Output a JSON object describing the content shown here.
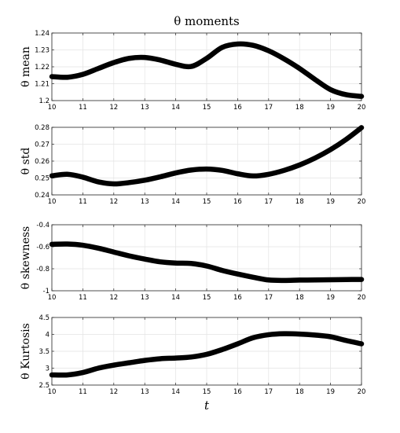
{
  "figure": {
    "title": "θ moments",
    "xlabel": "t"
  },
  "chart_data": [
    {
      "type": "line",
      "ylabel": "θ mean",
      "xlim": [
        10,
        20
      ],
      "ylim": [
        1.2,
        1.24
      ],
      "xticks": [
        "10",
        "11",
        "12",
        "13",
        "14",
        "15",
        "16",
        "17",
        "18",
        "19",
        "20"
      ],
      "yticks": [
        "1.2",
        "1.21",
        "1.22",
        "1.23",
        "1.24"
      ],
      "grid": true,
      "x": [
        10,
        10.5,
        11,
        11.5,
        12,
        12.5,
        13,
        13.5,
        14,
        14.5,
        15,
        15.5,
        16,
        16.5,
        17,
        17.5,
        18,
        18.5,
        19,
        19.5,
        20
      ],
      "series": [
        {
          "color": "#000000",
          "values": [
            1.2142,
            1.2138,
            1.2155,
            1.219,
            1.2225,
            1.225,
            1.2255,
            1.224,
            1.2215,
            1.2202,
            1.225,
            1.2315,
            1.2335,
            1.2327,
            1.2295,
            1.2247,
            1.219,
            1.2125,
            1.2065,
            1.2035,
            1.2025
          ]
        }
      ]
    },
    {
      "type": "line",
      "ylabel": "θ std",
      "xlim": [
        10,
        20
      ],
      "ylim": [
        0.24,
        0.28
      ],
      "xticks": [
        "10",
        "11",
        "12",
        "13",
        "14",
        "15",
        "16",
        "17",
        "18",
        "19",
        "20"
      ],
      "yticks": [
        "0.24",
        "0.25",
        "0.26",
        "0.27",
        "0.28"
      ],
      "grid": true,
      "x": [
        10,
        10.5,
        11,
        11.5,
        12,
        12.5,
        13,
        13.5,
        14,
        14.5,
        15,
        15.5,
        16,
        16.5,
        17,
        17.5,
        18,
        18.5,
        19,
        19.5,
        20
      ],
      "series": [
        {
          "color": "#000000",
          "values": [
            0.2513,
            0.2522,
            0.2505,
            0.2477,
            0.2465,
            0.2473,
            0.2487,
            0.2507,
            0.253,
            0.2547,
            0.2553,
            0.2545,
            0.2525,
            0.2512,
            0.2522,
            0.2545,
            0.2577,
            0.2618,
            0.2668,
            0.2728,
            0.2798
          ]
        }
      ]
    },
    {
      "type": "line",
      "ylabel": "θ skewness",
      "xlim": [
        10,
        20
      ],
      "ylim": [
        -1,
        -0.4
      ],
      "xticks": [
        "10",
        "11",
        "12",
        "13",
        "14",
        "15",
        "16",
        "17",
        "18",
        "19",
        "20"
      ],
      "yticks": [
        "-1",
        "-0.8",
        "-0.6",
        "-0.4"
      ],
      "grid": true,
      "x": [
        10,
        10.5,
        11,
        11.5,
        12,
        12.5,
        13,
        13.5,
        14,
        14.5,
        15,
        15.5,
        16,
        16.5,
        17,
        17.5,
        18,
        18.5,
        19,
        19.5,
        20
      ],
      "series": [
        {
          "color": "#000000",
          "values": [
            -0.578,
            -0.575,
            -0.586,
            -0.613,
            -0.648,
            -0.683,
            -0.712,
            -0.737,
            -0.748,
            -0.752,
            -0.775,
            -0.815,
            -0.848,
            -0.877,
            -0.902,
            -0.906,
            -0.903,
            -0.902,
            -0.9,
            -0.898,
            -0.897
          ]
        }
      ]
    },
    {
      "type": "line",
      "ylabel": "θ Kurtosis",
      "xlim": [
        10,
        20
      ],
      "ylim": [
        2.5,
        4.5
      ],
      "xticks": [
        "10",
        "11",
        "12",
        "13",
        "14",
        "15",
        "16",
        "17",
        "18",
        "19",
        "20"
      ],
      "yticks": [
        "2.5",
        "3",
        "3.5",
        "4",
        "4.5"
      ],
      "grid": true,
      "x": [
        10,
        10.5,
        11,
        11.5,
        12,
        12.5,
        13,
        13.5,
        14,
        14.5,
        15,
        15.5,
        16,
        16.5,
        17,
        17.5,
        18,
        18.5,
        19,
        19.5,
        20
      ],
      "series": [
        {
          "color": "#000000",
          "values": [
            2.8,
            2.8,
            2.87,
            3.0,
            3.09,
            3.16,
            3.23,
            3.28,
            3.3,
            3.33,
            3.41,
            3.55,
            3.72,
            3.9,
            3.99,
            4.02,
            4.01,
            3.98,
            3.93,
            3.82,
            3.72
          ]
        }
      ]
    }
  ]
}
